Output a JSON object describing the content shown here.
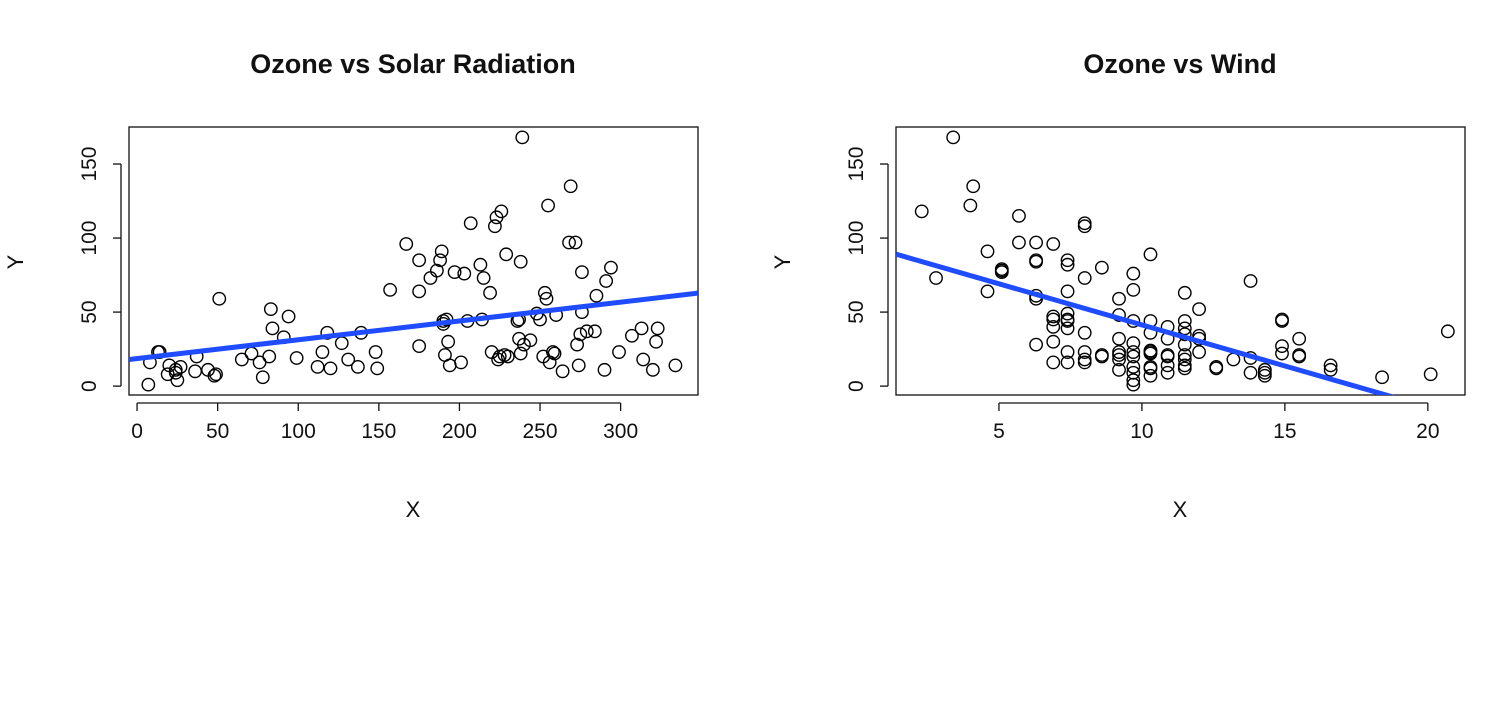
{
  "chart_data": [
    {
      "type": "scatter",
      "title": "Ozone vs Solar Radiation",
      "xlabel": "X",
      "ylabel": "Y",
      "xlim": [
        -5,
        348
      ],
      "ylim": [
        -6,
        175
      ],
      "xticks": [
        0,
        50,
        100,
        150,
        200,
        250,
        300
      ],
      "yticks": [
        0,
        50,
        100,
        150
      ],
      "grid": false,
      "marker_color": "#000000",
      "line_color": "#1f4cff",
      "fit_line": {
        "intercept": 18.6,
        "slope": 0.127
      },
      "points": [
        [
          7,
          1
        ],
        [
          8,
          16
        ],
        [
          13,
          23
        ],
        [
          14,
          23
        ],
        [
          19,
          8
        ],
        [
          20,
          14
        ],
        [
          24,
          11
        ],
        [
          24,
          9
        ],
        [
          25,
          4
        ],
        [
          27,
          13
        ],
        [
          36,
          10
        ],
        [
          37,
          20
        ],
        [
          44,
          11
        ],
        [
          48,
          7
        ],
        [
          49,
          8
        ],
        [
          51,
          59
        ],
        [
          65,
          18
        ],
        [
          71,
          22
        ],
        [
          76,
          16
        ],
        [
          78,
          6
        ],
        [
          82,
          20
        ],
        [
          83,
          52
        ],
        [
          84,
          39
        ],
        [
          91,
          33
        ],
        [
          94,
          47
        ],
        [
          99,
          19
        ],
        [
          112,
          13
        ],
        [
          115,
          23
        ],
        [
          118,
          36
        ],
        [
          120,
          12
        ],
        [
          127,
          29
        ],
        [
          131,
          18
        ],
        [
          137,
          13
        ],
        [
          139,
          36
        ],
        [
          148,
          23
        ],
        [
          149,
          12
        ],
        [
          157,
          65
        ],
        [
          167,
          96
        ],
        [
          175,
          64
        ],
        [
          175,
          85
        ],
        [
          175,
          27
        ],
        [
          182,
          73
        ],
        [
          186,
          78
        ],
        [
          188,
          85
        ],
        [
          189,
          91
        ],
        [
          190,
          44
        ],
        [
          190,
          42
        ],
        [
          191,
          21
        ],
        [
          192,
          45
        ],
        [
          193,
          30
        ],
        [
          194,
          14
        ],
        [
          197,
          77
        ],
        [
          201,
          16
        ],
        [
          203,
          76
        ],
        [
          207,
          110
        ],
        [
          213,
          82
        ],
        [
          214,
          45
        ],
        [
          215,
          73
        ],
        [
          219,
          63
        ],
        [
          220,
          23
        ],
        [
          222,
          108
        ],
        [
          223,
          114
        ],
        [
          224,
          18
        ],
        [
          225,
          20
        ],
        [
          226,
          118
        ],
        [
          228,
          21
        ],
        [
          229,
          89
        ],
        [
          236,
          44
        ],
        [
          237,
          45
        ],
        [
          237,
          32
        ],
        [
          238,
          84
        ],
        [
          238,
          22
        ],
        [
          239,
          168
        ],
        [
          240,
          28
        ],
        [
          244,
          31
        ],
        [
          248,
          49
        ],
        [
          250,
          45
        ],
        [
          252,
          20
        ],
        [
          253,
          63
        ],
        [
          254,
          59
        ],
        [
          255,
          122
        ],
        [
          256,
          16
        ],
        [
          258,
          23
        ],
        [
          259,
          22
        ],
        [
          260,
          48
        ],
        [
          264,
          10
        ],
        [
          269,
          135
        ],
        [
          272,
          97
        ],
        [
          273,
          28
        ],
        [
          274,
          14
        ],
        [
          275,
          35
        ],
        [
          276,
          50
        ],
        [
          276,
          77
        ],
        [
          279,
          37
        ],
        [
          284,
          37
        ],
        [
          285,
          61
        ],
        [
          290,
          11
        ],
        [
          291,
          71
        ],
        [
          294,
          80
        ],
        [
          299,
          23
        ],
        [
          307,
          34
        ],
        [
          313,
          39
        ],
        [
          314,
          18
        ],
        [
          320,
          11
        ],
        [
          322,
          30
        ],
        [
          323,
          39
        ],
        [
          334,
          14
        ],
        [
          268,
          97
        ],
        [
          230,
          20
        ],
        [
          205,
          44
        ]
      ]
    },
    {
      "type": "scatter",
      "title": "Ozone vs Wind",
      "xlabel": "X",
      "ylabel": "Y",
      "xlim": [
        1.4,
        21.3
      ],
      "ylim": [
        -6,
        175
      ],
      "xticks": [
        5,
        10,
        15,
        20
      ],
      "yticks": [
        0,
        50,
        100,
        150
      ],
      "grid": false,
      "marker_color": "#000000",
      "line_color": "#1f4cff",
      "fit_line": {
        "intercept": 96.87,
        "slope": -5.55
      },
      "points": [
        [
          2.3,
          118
        ],
        [
          2.8,
          73
        ],
        [
          3.4,
          168
        ],
        [
          4.0,
          122
        ],
        [
          4.1,
          135
        ],
        [
          4.6,
          91
        ],
        [
          4.6,
          64
        ],
        [
          5.1,
          79
        ],
        [
          5.1,
          78
        ],
        [
          5.1,
          77
        ],
        [
          5.7,
          115
        ],
        [
          5.7,
          97
        ],
        [
          6.3,
          97
        ],
        [
          6.3,
          85
        ],
        [
          6.3,
          84
        ],
        [
          6.3,
          61
        ],
        [
          6.3,
          59
        ],
        [
          6.3,
          28
        ],
        [
          6.9,
          96
        ],
        [
          6.9,
          47
        ],
        [
          6.9,
          45
        ],
        [
          6.9,
          40
        ],
        [
          6.9,
          30
        ],
        [
          6.9,
          16
        ],
        [
          7.4,
          85
        ],
        [
          7.4,
          82
        ],
        [
          7.4,
          64
        ],
        [
          7.4,
          49
        ],
        [
          7.4,
          45
        ],
        [
          7.4,
          44
        ],
        [
          7.4,
          39
        ],
        [
          7.4,
          23
        ],
        [
          7.4,
          16
        ],
        [
          8.0,
          110
        ],
        [
          8.0,
          108
        ],
        [
          8.0,
          73
        ],
        [
          8.0,
          36
        ],
        [
          8.0,
          23
        ],
        [
          8.0,
          18
        ],
        [
          8.0,
          16
        ],
        [
          8.6,
          80
        ],
        [
          8.6,
          21
        ],
        [
          8.6,
          20
        ],
        [
          9.2,
          59
        ],
        [
          9.2,
          48
        ],
        [
          9.2,
          32
        ],
        [
          9.2,
          23
        ],
        [
          9.2,
          21
        ],
        [
          9.2,
          18
        ],
        [
          9.2,
          11
        ],
        [
          9.7,
          76
        ],
        [
          9.7,
          65
        ],
        [
          9.7,
          44
        ],
        [
          9.7,
          29
        ],
        [
          9.7,
          23
        ],
        [
          9.7,
          20
        ],
        [
          9.7,
          13
        ],
        [
          9.7,
          9
        ],
        [
          9.7,
          4
        ],
        [
          9.7,
          1
        ],
        [
          10.3,
          89
        ],
        [
          10.3,
          44
        ],
        [
          10.3,
          36
        ],
        [
          10.3,
          24
        ],
        [
          10.3,
          23
        ],
        [
          10.3,
          22
        ],
        [
          10.3,
          13
        ],
        [
          10.3,
          12
        ],
        [
          10.3,
          7
        ],
        [
          10.9,
          40
        ],
        [
          10.9,
          32
        ],
        [
          10.9,
          21
        ],
        [
          10.9,
          20
        ],
        [
          10.9,
          14
        ],
        [
          10.9,
          9
        ],
        [
          11.5,
          63
        ],
        [
          11.5,
          44
        ],
        [
          11.5,
          39
        ],
        [
          11.5,
          35
        ],
        [
          11.5,
          28
        ],
        [
          11.5,
          21
        ],
        [
          11.5,
          18
        ],
        [
          11.5,
          14
        ],
        [
          11.5,
          12
        ],
        [
          12.0,
          52
        ],
        [
          12.0,
          34
        ],
        [
          12.0,
          32
        ],
        [
          12.0,
          23
        ],
        [
          12.6,
          13
        ],
        [
          12.6,
          12
        ],
        [
          13.2,
          18
        ],
        [
          13.8,
          71
        ],
        [
          13.8,
          19
        ],
        [
          13.8,
          9
        ],
        [
          14.3,
          11
        ],
        [
          14.3,
          9
        ],
        [
          14.3,
          7
        ],
        [
          14.9,
          45
        ],
        [
          14.9,
          44
        ],
        [
          14.9,
          27
        ],
        [
          14.9,
          22
        ],
        [
          15.5,
          32
        ],
        [
          15.5,
          21
        ],
        [
          15.5,
          20
        ],
        [
          16.6,
          14
        ],
        [
          16.6,
          11
        ],
        [
          18.4,
          6
        ],
        [
          20.1,
          8
        ],
        [
          20.7,
          37
        ]
      ]
    }
  ]
}
